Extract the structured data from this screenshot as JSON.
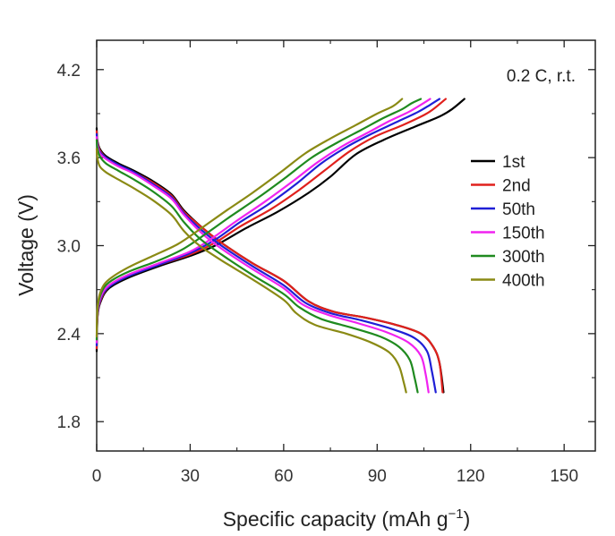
{
  "chart_data": {
    "type": "line",
    "xlabel": "Specific capacity (mAh g",
    "xlabel_sup": "−1",
    "xlabel_end": ")",
    "ylabel": "Voltage (V)",
    "annotation": "0.2 C, r.t.",
    "xlim": [
      0,
      160
    ],
    "ylim": [
      1.6,
      4.4
    ],
    "xticks": [
      0,
      30,
      60,
      90,
      120,
      150
    ],
    "yticks": [
      1.8,
      2.4,
      3.0,
      3.6,
      4.2
    ],
    "xtick_labels": [
      "0",
      "30",
      "60",
      "90",
      "120",
      "150"
    ],
    "ytick_labels": [
      "1.8",
      "2.4",
      "3.0",
      "3.6",
      "4.2"
    ],
    "legend_position": "right",
    "series": [
      {
        "name": "1st",
        "color": "#000000",
        "discharge": [
          [
            0,
            3.8
          ],
          [
            0.2,
            3.72
          ],
          [
            1,
            3.66
          ],
          [
            3,
            3.61
          ],
          [
            7,
            3.56
          ],
          [
            12,
            3.51
          ],
          [
            18,
            3.44
          ],
          [
            24,
            3.35
          ],
          [
            28,
            3.24
          ],
          [
            34,
            3.12
          ],
          [
            40,
            3.02
          ],
          [
            50,
            2.88
          ],
          [
            60,
            2.76
          ],
          [
            68,
            2.62
          ],
          [
            76,
            2.55
          ],
          [
            86,
            2.51
          ],
          [
            96,
            2.46
          ],
          [
            104,
            2.4
          ],
          [
            108,
            2.31
          ],
          [
            110,
            2.2
          ],
          [
            111.3,
            2.0
          ]
        ],
        "charge": [
          [
            0,
            2.28
          ],
          [
            0.3,
            2.52
          ],
          [
            1.5,
            2.63
          ],
          [
            4,
            2.71
          ],
          [
            10,
            2.78
          ],
          [
            20,
            2.86
          ],
          [
            30,
            2.93
          ],
          [
            38,
            3.0
          ],
          [
            48,
            3.12
          ],
          [
            58,
            3.23
          ],
          [
            68,
            3.36
          ],
          [
            75,
            3.47
          ],
          [
            83,
            3.62
          ],
          [
            92,
            3.72
          ],
          [
            102,
            3.81
          ],
          [
            110,
            3.88
          ],
          [
            114,
            3.93
          ],
          [
            118,
            4.0
          ]
        ]
      },
      {
        "name": "2nd",
        "color": "#e0201c",
        "discharge": [
          [
            0,
            3.78
          ],
          [
            0.2,
            3.71
          ],
          [
            1,
            3.65
          ],
          [
            3,
            3.6
          ],
          [
            7,
            3.55
          ],
          [
            12,
            3.5
          ],
          [
            18,
            3.43
          ],
          [
            24,
            3.34
          ],
          [
            28,
            3.23
          ],
          [
            34,
            3.12
          ],
          [
            40,
            3.02
          ],
          [
            50,
            2.88
          ],
          [
            60,
            2.76
          ],
          [
            68,
            2.62
          ],
          [
            76,
            2.55
          ],
          [
            86,
            2.51
          ],
          [
            96,
            2.46
          ],
          [
            104,
            2.4
          ],
          [
            108,
            2.31
          ],
          [
            110,
            2.2
          ],
          [
            111,
            2.0
          ]
        ],
        "charge": [
          [
            0,
            2.3
          ],
          [
            0.3,
            2.53
          ],
          [
            1.5,
            2.64
          ],
          [
            4,
            2.72
          ],
          [
            10,
            2.79
          ],
          [
            20,
            2.87
          ],
          [
            30,
            2.94
          ],
          [
            38,
            3.02
          ],
          [
            46,
            3.13
          ],
          [
            56,
            3.25
          ],
          [
            65,
            3.38
          ],
          [
            73,
            3.51
          ],
          [
            81,
            3.64
          ],
          [
            89,
            3.74
          ],
          [
            98,
            3.82
          ],
          [
            105,
            3.89
          ],
          [
            108,
            3.93
          ],
          [
            112,
            4.0
          ]
        ]
      },
      {
        "name": "50th",
        "color": "#1f1fd6",
        "discharge": [
          [
            0,
            3.76
          ],
          [
            0.2,
            3.7
          ],
          [
            1,
            3.64
          ],
          [
            3,
            3.6
          ],
          [
            7,
            3.55
          ],
          [
            12,
            3.5
          ],
          [
            18,
            3.42
          ],
          [
            24,
            3.33
          ],
          [
            28,
            3.22
          ],
          [
            34,
            3.1
          ],
          [
            40,
            3.0
          ],
          [
            50,
            2.86
          ],
          [
            60,
            2.73
          ],
          [
            67,
            2.61
          ],
          [
            75,
            2.54
          ],
          [
            85,
            2.49
          ],
          [
            95,
            2.43
          ],
          [
            102,
            2.37
          ],
          [
            106,
            2.28
          ],
          [
            107.5,
            2.15
          ],
          [
            108.8,
            2.0
          ]
        ],
        "charge": [
          [
            0,
            2.32
          ],
          [
            0.3,
            2.54
          ],
          [
            1.5,
            2.65
          ],
          [
            4,
            2.72
          ],
          [
            10,
            2.79
          ],
          [
            20,
            2.87
          ],
          [
            30,
            2.95
          ],
          [
            38,
            3.04
          ],
          [
            46,
            3.16
          ],
          [
            55,
            3.28
          ],
          [
            64,
            3.42
          ],
          [
            72,
            3.56
          ],
          [
            80,
            3.67
          ],
          [
            88,
            3.76
          ],
          [
            96,
            3.84
          ],
          [
            103,
            3.91
          ],
          [
            107,
            3.96
          ],
          [
            110,
            4.0
          ]
        ]
      },
      {
        "name": "150th",
        "color": "#f023f0",
        "discharge": [
          [
            0,
            3.74
          ],
          [
            0.2,
            3.69
          ],
          [
            1,
            3.63
          ],
          [
            3,
            3.59
          ],
          [
            7,
            3.54
          ],
          [
            12,
            3.49
          ],
          [
            18,
            3.41
          ],
          [
            24,
            3.32
          ],
          [
            28,
            3.21
          ],
          [
            34,
            3.08
          ],
          [
            40,
            2.98
          ],
          [
            50,
            2.84
          ],
          [
            60,
            2.71
          ],
          [
            66,
            2.6
          ],
          [
            74,
            2.53
          ],
          [
            84,
            2.47
          ],
          [
            93,
            2.41
          ],
          [
            100,
            2.34
          ],
          [
            104,
            2.25
          ],
          [
            105.5,
            2.13
          ],
          [
            106.5,
            2.0
          ]
        ],
        "charge": [
          [
            0,
            2.34
          ],
          [
            0.3,
            2.55
          ],
          [
            1.5,
            2.66
          ],
          [
            4,
            2.73
          ],
          [
            10,
            2.8
          ],
          [
            20,
            2.88
          ],
          [
            30,
            2.96
          ],
          [
            37,
            3.05
          ],
          [
            45,
            3.17
          ],
          [
            54,
            3.3
          ],
          [
            63,
            3.44
          ],
          [
            71,
            3.57
          ],
          [
            79,
            3.68
          ],
          [
            87,
            3.77
          ],
          [
            94,
            3.85
          ],
          [
            100,
            3.91
          ],
          [
            104,
            3.96
          ],
          [
            107,
            4.0
          ]
        ]
      },
      {
        "name": "300th",
        "color": "#1f8a1f",
        "discharge": [
          [
            0,
            3.72
          ],
          [
            0.2,
            3.67
          ],
          [
            1,
            3.61
          ],
          [
            3,
            3.56
          ],
          [
            7,
            3.51
          ],
          [
            12,
            3.45
          ],
          [
            18,
            3.37
          ],
          [
            24,
            3.27
          ],
          [
            28,
            3.16
          ],
          [
            33,
            3.05
          ],
          [
            40,
            2.94
          ],
          [
            50,
            2.8
          ],
          [
            60,
            2.67
          ],
          [
            65,
            2.58
          ],
          [
            72,
            2.5
          ],
          [
            82,
            2.44
          ],
          [
            91,
            2.38
          ],
          [
            97,
            2.31
          ],
          [
            100.5,
            2.22
          ],
          [
            102,
            2.1
          ],
          [
            103,
            2.0
          ]
        ],
        "charge": [
          [
            0,
            2.36
          ],
          [
            0.3,
            2.57
          ],
          [
            1.5,
            2.68
          ],
          [
            4,
            2.75
          ],
          [
            10,
            2.82
          ],
          [
            20,
            2.9
          ],
          [
            28,
            2.98
          ],
          [
            35,
            3.08
          ],
          [
            43,
            3.2
          ],
          [
            52,
            3.33
          ],
          [
            61,
            3.47
          ],
          [
            69,
            3.6
          ],
          [
            77,
            3.7
          ],
          [
            85,
            3.79
          ],
          [
            92,
            3.87
          ],
          [
            98,
            3.93
          ],
          [
            101,
            3.97
          ],
          [
            104,
            4.0
          ]
        ]
      },
      {
        "name": "400th",
        "color": "#8a8a14",
        "discharge": [
          [
            0,
            3.66
          ],
          [
            0.2,
            3.6
          ],
          [
            1,
            3.54
          ],
          [
            3,
            3.5
          ],
          [
            7,
            3.45
          ],
          [
            12,
            3.39
          ],
          [
            18,
            3.31
          ],
          [
            24,
            3.21
          ],
          [
            28,
            3.1
          ],
          [
            33,
            3.0
          ],
          [
            40,
            2.9
          ],
          [
            50,
            2.77
          ],
          [
            60,
            2.63
          ],
          [
            64,
            2.54
          ],
          [
            70,
            2.46
          ],
          [
            80,
            2.4
          ],
          [
            88,
            2.34
          ],
          [
            94,
            2.27
          ],
          [
            97,
            2.18
          ],
          [
            98.5,
            2.07
          ],
          [
            99.3,
            2.0
          ]
        ],
        "charge": [
          [
            0,
            2.38
          ],
          [
            0.3,
            2.59
          ],
          [
            1.5,
            2.7
          ],
          [
            4,
            2.77
          ],
          [
            10,
            2.85
          ],
          [
            18,
            2.93
          ],
          [
            26,
            3.01
          ],
          [
            33,
            3.11
          ],
          [
            41,
            3.23
          ],
          [
            50,
            3.36
          ],
          [
            59,
            3.5
          ],
          [
            67,
            3.63
          ],
          [
            75,
            3.73
          ],
          [
            83,
            3.82
          ],
          [
            90,
            3.9
          ],
          [
            95,
            3.95
          ],
          [
            98,
            4.0
          ]
        ]
      }
    ]
  }
}
